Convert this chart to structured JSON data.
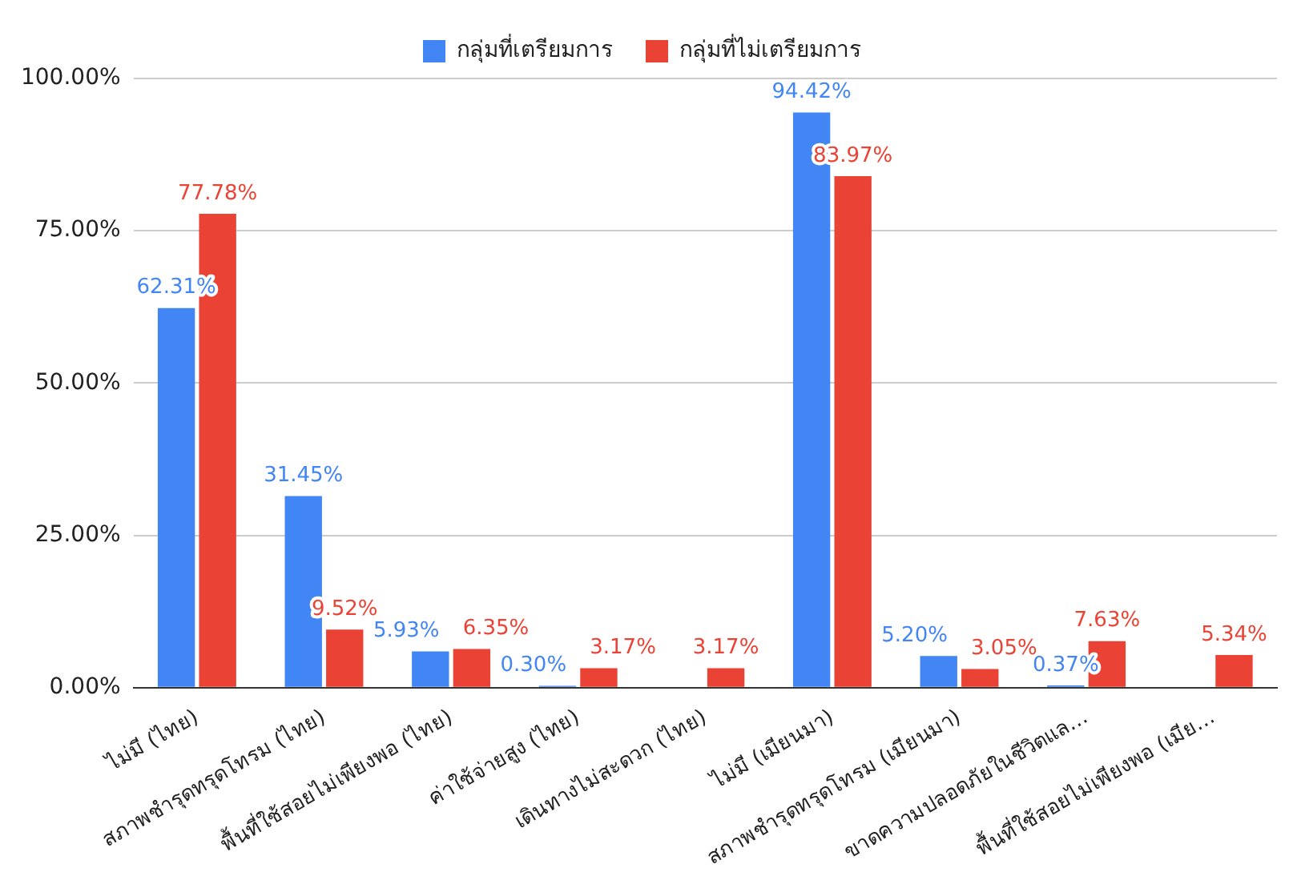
{
  "chart_data": {
    "type": "bar",
    "categories": [
      "ไม่มี (ไทย)",
      "สภาพชำรุดทรุดโทรม (ไทย)",
      "พื้นที่ใช้สอยไม่เพียงพอ (ไทย)",
      "ค่าใช้จ่ายสูง (ไทย)",
      "เดินทางไม่สะดวก (ไทย)",
      "ไม่มี (เมียนมา)",
      "สภาพชำรุดทรุดโทรม (เมียนมา)",
      "ขาดความปลอดภัยในชีวิตแล…",
      "พื้นที่ใช้สอยไม่เพียงพอ (เมีย…"
    ],
    "series": [
      {
        "name": "กลุ่มที่เตรียมการ",
        "color": "#4285f4",
        "values": [
          62.31,
          31.45,
          5.93,
          0.3,
          null,
          94.42,
          5.2,
          0.37,
          null
        ],
        "value_labels": [
          "62.31%",
          "31.45%",
          "5.93%",
          "0.30%",
          null,
          "94.42%",
          "5.20%",
          "0.37%",
          null
        ]
      },
      {
        "name": "กลุ่มที่ไม่เตรียมการ",
        "color": "#ea4335",
        "values": [
          77.78,
          9.52,
          6.35,
          3.17,
          3.17,
          83.97,
          3.05,
          7.63,
          5.34
        ],
        "value_labels": [
          "77.78%",
          "9.52%",
          "6.35%",
          "3.17%",
          "3.17%",
          "83.97%",
          "3.05%",
          "7.63%",
          "5.34%"
        ]
      }
    ],
    "ylim": [
      0,
      100
    ],
    "yticks": [
      {
        "value": 0,
        "label": "0.00%"
      },
      {
        "value": 25,
        "label": "25.00%"
      },
      {
        "value": 50,
        "label": "50.00%"
      },
      {
        "value": 75,
        "label": "75.00%"
      },
      {
        "value": 100,
        "label": "100.00%"
      }
    ],
    "grid": "y",
    "legend": "top"
  }
}
